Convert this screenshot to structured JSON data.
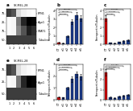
{
  "chart_data": [
    {
      "type": "heatmap",
      "title": "a",
      "subtitle": "SK-MEL-28",
      "x": [
        "1",
        "2",
        "3",
        "4",
        "5",
        "6"
      ],
      "y": [
        "FPN1",
        "Ago1",
        "STAT1",
        "Tubulin"
      ],
      "kda_labels": [
        "75-",
        "25-",
        "75-",
        "50-"
      ],
      "values": [
        [
          0.75,
          0.7,
          0.3,
          0.2,
          0.15,
          0.12
        ],
        [
          0.15,
          0.18,
          0.6,
          0.8,
          0.9,
          0.88
        ],
        [
          0.15,
          0.18,
          0.55,
          0.7,
          0.82,
          0.78
        ],
        [
          0.75,
          0.75,
          0.75,
          0.75,
          0.75,
          0.75
        ]
      ]
    },
    {
      "type": "bar",
      "title": "b",
      "categories": [
        "CT",
        "si1",
        "si2",
        "si3",
        "si4",
        "si5"
      ],
      "values": [
        0.22,
        0.18,
        1.0,
        2.7,
        3.4,
        3.1
      ],
      "errors": [
        0.06,
        0.05,
        0.12,
        0.32,
        0.42,
        0.36
      ],
      "colors": [
        "#cc0000",
        "#1a3a8a",
        "#1a3a8a",
        "#1a3a8a",
        "#1a3a8a",
        "#1a3a8a"
      ],
      "ylabel": "Ferroportin/Tubulin",
      "ylim": [
        0,
        4.2
      ],
      "yticks": [
        0,
        1,
        2,
        3,
        4
      ],
      "annotations": [
        {
          "from": "CT",
          "to": "si2",
          "label": "p<0.001",
          "y": 3.5
        },
        {
          "from": "CT",
          "to": "si3",
          "label": "p<0.001",
          "y": 3.8
        },
        {
          "from": "CT",
          "to": "si4",
          "label": "p<0.001",
          "y": 4.1
        }
      ]
    },
    {
      "type": "bar",
      "title": "c",
      "categories": [
        "CT",
        "si1",
        "si2",
        "si3",
        "si4",
        "si5"
      ],
      "values": [
        3.1,
        0.22,
        0.18,
        0.3,
        0.42,
        0.5
      ],
      "errors": [
        0.36,
        0.05,
        0.05,
        0.06,
        0.07,
        0.07
      ],
      "colors": [
        "#cc0000",
        "#1a3a8a",
        "#1a3a8a",
        "#1a3a8a",
        "#1a3a8a",
        "#1a3a8a"
      ],
      "ylabel": "Ferroportin/Tubulin",
      "ylim": [
        0,
        4.2
      ],
      "yticks": [
        0,
        1,
        2,
        3,
        4
      ],
      "annotations": [
        {
          "from": "CT",
          "to": "si2",
          "label": "p<0.001",
          "y": 3.5
        },
        {
          "from": "CT",
          "to": "si3",
          "label": "p=0.001",
          "y": 3.8
        },
        {
          "from": "CT",
          "to": "si4",
          "label": "p=0.001",
          "y": 4.1
        }
      ]
    },
    {
      "type": "bar",
      "title": "d",
      "categories": [
        "CT",
        "si1",
        "si2",
        "si3",
        "si4",
        "si5"
      ],
      "values": [
        0.25,
        0.2,
        1.0,
        1.75,
        2.15,
        1.95
      ],
      "errors": [
        0.06,
        0.05,
        0.12,
        0.22,
        0.26,
        0.24
      ],
      "colors": [
        "#cc0000",
        "#1a3a8a",
        "#1a3a8a",
        "#1a3a8a",
        "#1a3a8a",
        "#1a3a8a"
      ],
      "ylabel": "Ferroportin/Tubulin",
      "ylim": [
        0,
        3.0
      ],
      "yticks": [
        0,
        1,
        2,
        3
      ],
      "annotations": [
        {
          "from": "CT",
          "to": "si2",
          "label": "p=0.045",
          "y": 2.5
        },
        {
          "from": "CT",
          "to": "si3",
          "label": "p=0.044",
          "y": 2.72
        },
        {
          "from": "CT",
          "to": "si4",
          "label": "p=0.121",
          "y": 2.9
        }
      ]
    },
    {
      "type": "heatmap",
      "title": "e",
      "subtitle": "SK-MEL-28",
      "x": [
        "1",
        "2",
        "3",
        "4",
        "5",
        "6"
      ],
      "y": [
        "FPN1",
        "Ago1",
        "Tubulin"
      ],
      "kda_labels": [
        "75-",
        "25-",
        "50-"
      ],
      "values": [
        [
          0.75,
          0.7,
          0.3,
          0.2,
          0.15,
          0.12
        ],
        [
          0.15,
          0.18,
          0.6,
          0.8,
          0.9,
          0.88
        ],
        [
          0.75,
          0.75,
          0.75,
          0.75,
          0.75,
          0.75
        ]
      ]
    },
    {
      "type": "bar",
      "title": "f",
      "categories": [
        "CT",
        "si1",
        "si2",
        "si3",
        "si4",
        "si5"
      ],
      "values": [
        2.7,
        0.25,
        0.2,
        0.32,
        0.44,
        0.52
      ],
      "errors": [
        0.32,
        0.06,
        0.05,
        0.07,
        0.07,
        0.08
      ],
      "colors": [
        "#cc0000",
        "#1a3a8a",
        "#1a3a8a",
        "#1a3a8a",
        "#1a3a8a",
        "#1a3a8a"
      ],
      "ylabel": "Ferroportin/Tubulin",
      "ylim": [
        0,
        3.5
      ],
      "yticks": [
        0,
        1,
        2,
        3
      ],
      "annotations": [
        {
          "from": "CT",
          "to": "si2",
          "label": "p=0.041",
          "y": 3.0
        },
        {
          "from": "CT",
          "to": "si3",
          "label": "p=0.024",
          "y": 3.18
        },
        {
          "from": "CT",
          "to": "si4",
          "label": "p=0.154",
          "y": 3.36
        }
      ]
    }
  ]
}
